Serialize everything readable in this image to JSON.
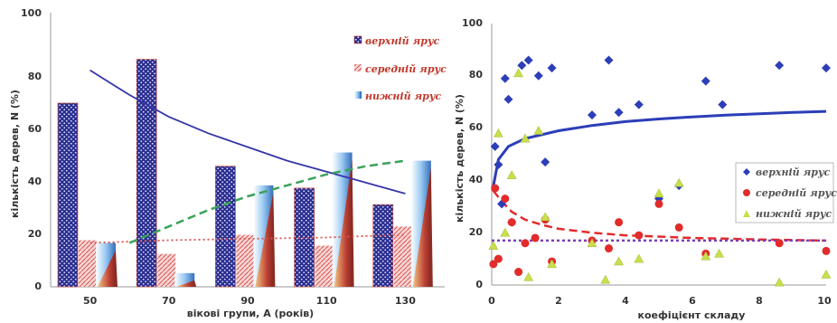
{
  "chart_data": [
    {
      "type": "bar",
      "categories": [
        "50",
        "70",
        "90",
        "110",
        "130"
      ],
      "xlabel": "вікові групи, А (років)",
      "ylabel": "кількість дерев, N (%)",
      "ylim": [
        0,
        100
      ],
      "yticks": [
        "0",
        "20",
        "40",
        "60",
        "80",
        "100"
      ],
      "grid": false,
      "legend_position": "top-right",
      "series": [
        {
          "name": "верхній ярус",
          "values": [
            67,
            83,
            44,
            36,
            30
          ],
          "color": "#2b2e8f"
        },
        {
          "name": "середній ярус",
          "values": [
            17,
            12,
            19,
            15,
            22
          ],
          "color": "#d9534f"
        },
        {
          "name": "нижній ярус",
          "values": [
            16,
            5,
            37,
            49,
            46
          ],
          "color": "#3f8fd8"
        }
      ],
      "trendlines": [
        {
          "series": "верхній ярус",
          "style": "solid",
          "color": "#3535a8",
          "x": [
            50,
            60,
            70,
            80,
            90,
            100,
            110,
            120,
            130
          ],
          "y": [
            79,
            70,
            62,
            56,
            51,
            46,
            42,
            38,
            34
          ]
        },
        {
          "series": "середній ярус",
          "style": "dotted",
          "color": "#d9534f",
          "x": [
            50,
            70,
            90,
            110,
            130
          ],
          "y": [
            16,
            17,
            17.5,
            18,
            19
          ]
        },
        {
          "series": "нижній ярус",
          "style": "dashed",
          "color": "#3aa35a",
          "x": [
            60,
            70,
            80,
            90,
            100,
            110,
            120,
            130
          ],
          "y": [
            16,
            22,
            28,
            33,
            37,
            41,
            44,
            46
          ]
        }
      ]
    },
    {
      "type": "scatter",
      "xlabel": "коефіцієнт складу",
      "ylabel": "кількість дерев, N (%)",
      "xlim": [
        0,
        10
      ],
      "ylim": [
        0,
        100
      ],
      "xticks": [
        "0",
        "2",
        "4",
        "6",
        "8",
        "10"
      ],
      "yticks": [
        "0",
        "20",
        "40",
        "60",
        "80",
        "100"
      ],
      "grid": false,
      "legend_position": "right",
      "series": [
        {
          "name": "верхній ярус",
          "marker": "diamond",
          "color": "#2c3eb8",
          "x": [
            0.1,
            0.2,
            0.3,
            0.4,
            0.5,
            0.6,
            0.9,
            1.1,
            1.4,
            1.6,
            1.8,
            3.0,
            3.5,
            3.8,
            4.4,
            5.0,
            5.6,
            6.4,
            6.9,
            8.6,
            10.0
          ],
          "y": [
            53,
            46,
            31,
            79,
            71,
            24,
            84,
            86,
            80,
            47,
            83,
            65,
            86,
            66,
            69,
            33,
            38,
            78,
            69,
            84,
            83
          ]
        },
        {
          "name": "середній ярус",
          "marker": "circle",
          "color": "#e22b2b",
          "x": [
            0.05,
            0.1,
            0.2,
            0.4,
            0.6,
            0.8,
            1.0,
            1.3,
            1.6,
            1.8,
            3.0,
            3.5,
            3.8,
            4.4,
            5.0,
            5.6,
            6.4,
            8.6,
            10.0
          ],
          "y": [
            8,
            37,
            10,
            33,
            24,
            5,
            16,
            18,
            25,
            9,
            17,
            14,
            24,
            19,
            31,
            22,
            12,
            16,
            13
          ]
        },
        {
          "name": "нижній ярус",
          "marker": "triangle",
          "color": "#c8df4a",
          "x": [
            0.05,
            0.2,
            0.4,
            0.6,
            0.8,
            1.0,
            1.1,
            1.4,
            1.6,
            1.8,
            3.0,
            3.4,
            3.8,
            4.4,
            5.0,
            5.6,
            6.4,
            6.8,
            8.6,
            10.0
          ],
          "y": [
            15,
            58,
            20,
            42,
            81,
            56,
            3,
            59,
            26,
            8,
            16,
            2,
            9,
            10,
            35,
            39,
            11,
            12,
            1,
            4
          ]
        }
      ],
      "trendlines": [
        {
          "series": "верхній ярус",
          "style": "solid",
          "color": "#2c3eb8",
          "x": [
            0.05,
            0.2,
            0.5,
            1,
            2,
            3,
            4,
            5,
            6,
            7,
            8,
            9,
            10
          ],
          "y": [
            38,
            48,
            53,
            56,
            59,
            61,
            62.5,
            63.5,
            64.3,
            65,
            65.5,
            66,
            66.4
          ]
        },
        {
          "series": "середній ярус",
          "style": "dashed",
          "color": "#e22b2b",
          "x": [
            0.05,
            0.3,
            0.6,
            1,
            1.5,
            2,
            3,
            4,
            5,
            6,
            7,
            8,
            9,
            10
          ],
          "y": [
            36,
            32,
            28,
            25,
            23,
            21.5,
            20,
            19,
            18.5,
            18,
            17.7,
            17.4,
            17.2,
            17
          ]
        },
        {
          "series": "нижній ярус",
          "style": "dotted",
          "color": "#7b3fb0",
          "x": [
            0,
            10
          ],
          "y": [
            17,
            17
          ]
        }
      ]
    }
  ]
}
